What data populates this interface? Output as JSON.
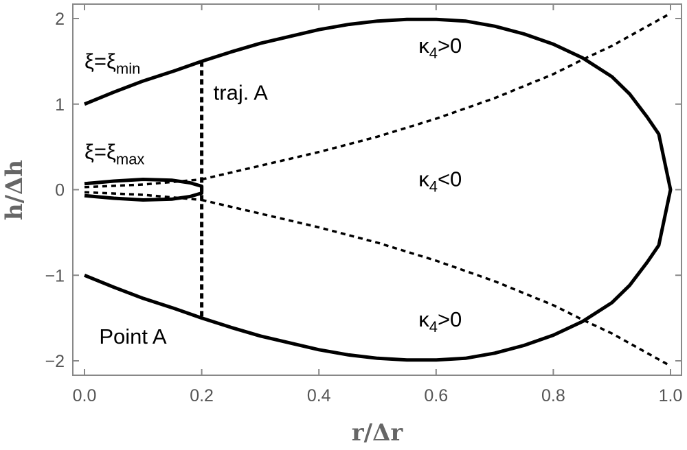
{
  "chart_data": {
    "type": "line",
    "xlabel": "r/Δr",
    "ylabel": "h/Δh",
    "xlim": [
      -0.02,
      1.02
    ],
    "ylim": [
      -2.2,
      2.2
    ],
    "xticks": [
      0.0,
      0.2,
      0.4,
      0.6,
      0.8,
      1.0
    ],
    "xtick_labels": [
      "0.0",
      "0.2",
      "0.4",
      "0.6",
      "0.8",
      "1.0"
    ],
    "yticks": [
      2,
      1,
      0,
      -1,
      -2
    ],
    "ytick_labels": [
      "2",
      "1",
      "0",
      "−1",
      "−2"
    ],
    "grid": false,
    "series": [
      {
        "style": "solid",
        "points": [
          [
            0,
            1
          ],
          [
            0.05,
            1.14
          ],
          [
            0.1,
            1.27
          ],
          [
            0.15,
            1.38
          ],
          [
            0.2,
            1.5
          ],
          [
            0.25,
            1.61
          ],
          [
            0.3,
            1.71
          ],
          [
            0.35,
            1.79
          ],
          [
            0.4,
            1.87
          ],
          [
            0.45,
            1.93
          ],
          [
            0.5,
            1.97
          ],
          [
            0.55,
            1.99
          ],
          [
            0.6,
            1.99
          ],
          [
            0.65,
            1.97
          ],
          [
            0.7,
            1.91
          ],
          [
            0.75,
            1.82
          ],
          [
            0.8,
            1.7
          ],
          [
            0.85,
            1.54
          ],
          [
            0.9,
            1.32
          ],
          [
            0.93,
            1.12
          ],
          [
            0.96,
            0.85
          ],
          [
            0.98,
            0.65
          ],
          [
            1.0,
            0
          ],
          [
            0.98,
            -0.65
          ],
          [
            0.96,
            -0.85
          ],
          [
            0.93,
            -1.12
          ],
          [
            0.9,
            -1.32
          ],
          [
            0.85,
            -1.54
          ],
          [
            0.8,
            -1.7
          ],
          [
            0.75,
            -1.82
          ],
          [
            0.7,
            -1.91
          ],
          [
            0.65,
            -1.97
          ],
          [
            0.6,
            -1.99
          ],
          [
            0.55,
            -1.99
          ],
          [
            0.5,
            -1.97
          ],
          [
            0.45,
            -1.93
          ],
          [
            0.4,
            -1.87
          ],
          [
            0.35,
            -1.79
          ],
          [
            0.3,
            -1.71
          ],
          [
            0.25,
            -1.61
          ],
          [
            0.2,
            -1.5
          ],
          [
            0.15,
            -1.38
          ],
          [
            0.1,
            -1.27
          ],
          [
            0.05,
            -1.14
          ],
          [
            0,
            -1
          ]
        ]
      },
      {
        "style": "solid",
        "points": [
          [
            0,
            0.07
          ],
          [
            0.05,
            0.1
          ],
          [
            0.1,
            0.12
          ],
          [
            0.15,
            0.11
          ],
          [
            0.18,
            0.08
          ],
          [
            0.2,
            0.04
          ],
          [
            0.2,
            -0.04
          ],
          [
            0.18,
            -0.08
          ],
          [
            0.15,
            -0.11
          ],
          [
            0.1,
            -0.12
          ],
          [
            0.05,
            -0.1
          ],
          [
            0,
            -0.07
          ]
        ]
      },
      {
        "style": "dashed",
        "points": [
          [
            0.2,
            0.12
          ],
          [
            0.3,
            0.28
          ],
          [
            0.4,
            0.44
          ],
          [
            0.5,
            0.62
          ],
          [
            0.6,
            0.83
          ],
          [
            0.7,
            1.07
          ],
          [
            0.8,
            1.35
          ],
          [
            0.85,
            1.52
          ],
          [
            0.9,
            1.68
          ],
          [
            0.95,
            1.87
          ],
          [
            1.0,
            2.06
          ]
        ]
      },
      {
        "style": "dashed",
        "points": [
          [
            0.2,
            -0.12
          ],
          [
            0.3,
            -0.28
          ],
          [
            0.4,
            -0.44
          ],
          [
            0.5,
            -0.62
          ],
          [
            0.6,
            -0.83
          ],
          [
            0.7,
            -1.07
          ],
          [
            0.8,
            -1.35
          ],
          [
            0.85,
            -1.52
          ],
          [
            0.9,
            -1.68
          ],
          [
            0.95,
            -1.87
          ],
          [
            1.0,
            -2.06
          ]
        ]
      },
      {
        "style": "dashed",
        "points": [
          [
            0,
            0.03
          ],
          [
            0.1,
            0.06
          ],
          [
            0.2,
            0.12
          ]
        ]
      },
      {
        "style": "dashed",
        "points": [
          [
            0,
            -0.03
          ],
          [
            0.1,
            -0.06
          ],
          [
            0.2,
            -0.12
          ]
        ]
      },
      {
        "style": "dashed-thick",
        "points": [
          [
            0.2,
            1.5
          ],
          [
            0.2,
            -1.5
          ]
        ]
      }
    ],
    "annotations": [
      {
        "key": "xi_min",
        "main": "ξ=ξ",
        "sub": "min",
        "at": [
          0.0,
          1.42
        ]
      },
      {
        "key": "xi_max",
        "main": "ξ=ξ",
        "sub": "max",
        "at": [
          0.0,
          0.36
        ]
      },
      {
        "key": "traj_a",
        "main": "traj. A",
        "at": [
          0.22,
          1.05
        ]
      },
      {
        "key": "kappa_top",
        "main": "κ",
        "sub": "4",
        "tail": ">0",
        "at": [
          0.57,
          1.6
        ]
      },
      {
        "key": "kappa_mid",
        "main": "κ",
        "sub": "4",
        "tail": "<0",
        "at": [
          0.57,
          0.04
        ]
      },
      {
        "key": "kappa_bot",
        "main": "κ",
        "sub": "4",
        "tail": ">0",
        "at": [
          0.57,
          -1.6
        ]
      },
      {
        "key": "point_a",
        "main": "Point A",
        "at": [
          0.025,
          -1.8
        ]
      }
    ]
  }
}
